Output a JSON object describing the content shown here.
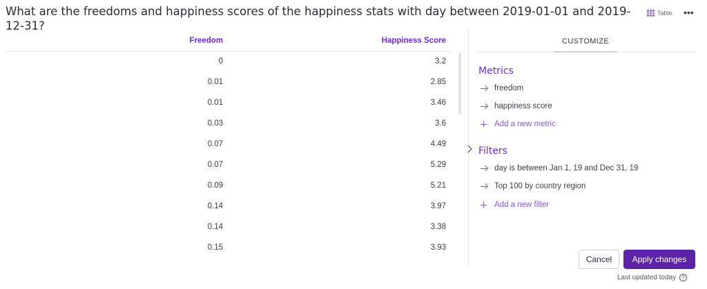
{
  "title": "What are the freedoms and happiness scores of the happiness stats with day between 2019-01-01 and 2019-12-31?",
  "view_toggle": {
    "icon": "table-grid-icon",
    "label": "Table"
  },
  "more_icon": "more-horizontal-icon",
  "table": {
    "columns": [
      "Freedom",
      "Happiness Score"
    ],
    "rows": [
      [
        "0",
        "3.2"
      ],
      [
        "0.01",
        "2.85"
      ],
      [
        "0.01",
        "3.46"
      ],
      [
        "0.03",
        "3.6"
      ],
      [
        "0.07",
        "4.49"
      ],
      [
        "0.07",
        "5.29"
      ],
      [
        "0.09",
        "5.21"
      ],
      [
        "0.14",
        "3.97"
      ],
      [
        "0.14",
        "3.38"
      ],
      [
        "0.15",
        "3.93"
      ]
    ]
  },
  "panel": {
    "tab": "CUSTOMIZE",
    "metrics": {
      "title": "Metrics",
      "items": [
        "freedom",
        "happiness score"
      ],
      "add_label": "Add a new metric"
    },
    "filters": {
      "title": "Filters",
      "items": [
        "day is between Jan 1, 19 and Dec 31, 19",
        "Top 100 by country region"
      ],
      "add_label": "Add a new filter"
    }
  },
  "buttons": {
    "cancel": "Cancel",
    "apply": "Apply changes"
  },
  "footer": {
    "last_updated": "Last updated today",
    "help_icon_glyph": "?"
  },
  "colors": {
    "accent": "#6d2bd9",
    "primary_button": "#5b23a8"
  }
}
